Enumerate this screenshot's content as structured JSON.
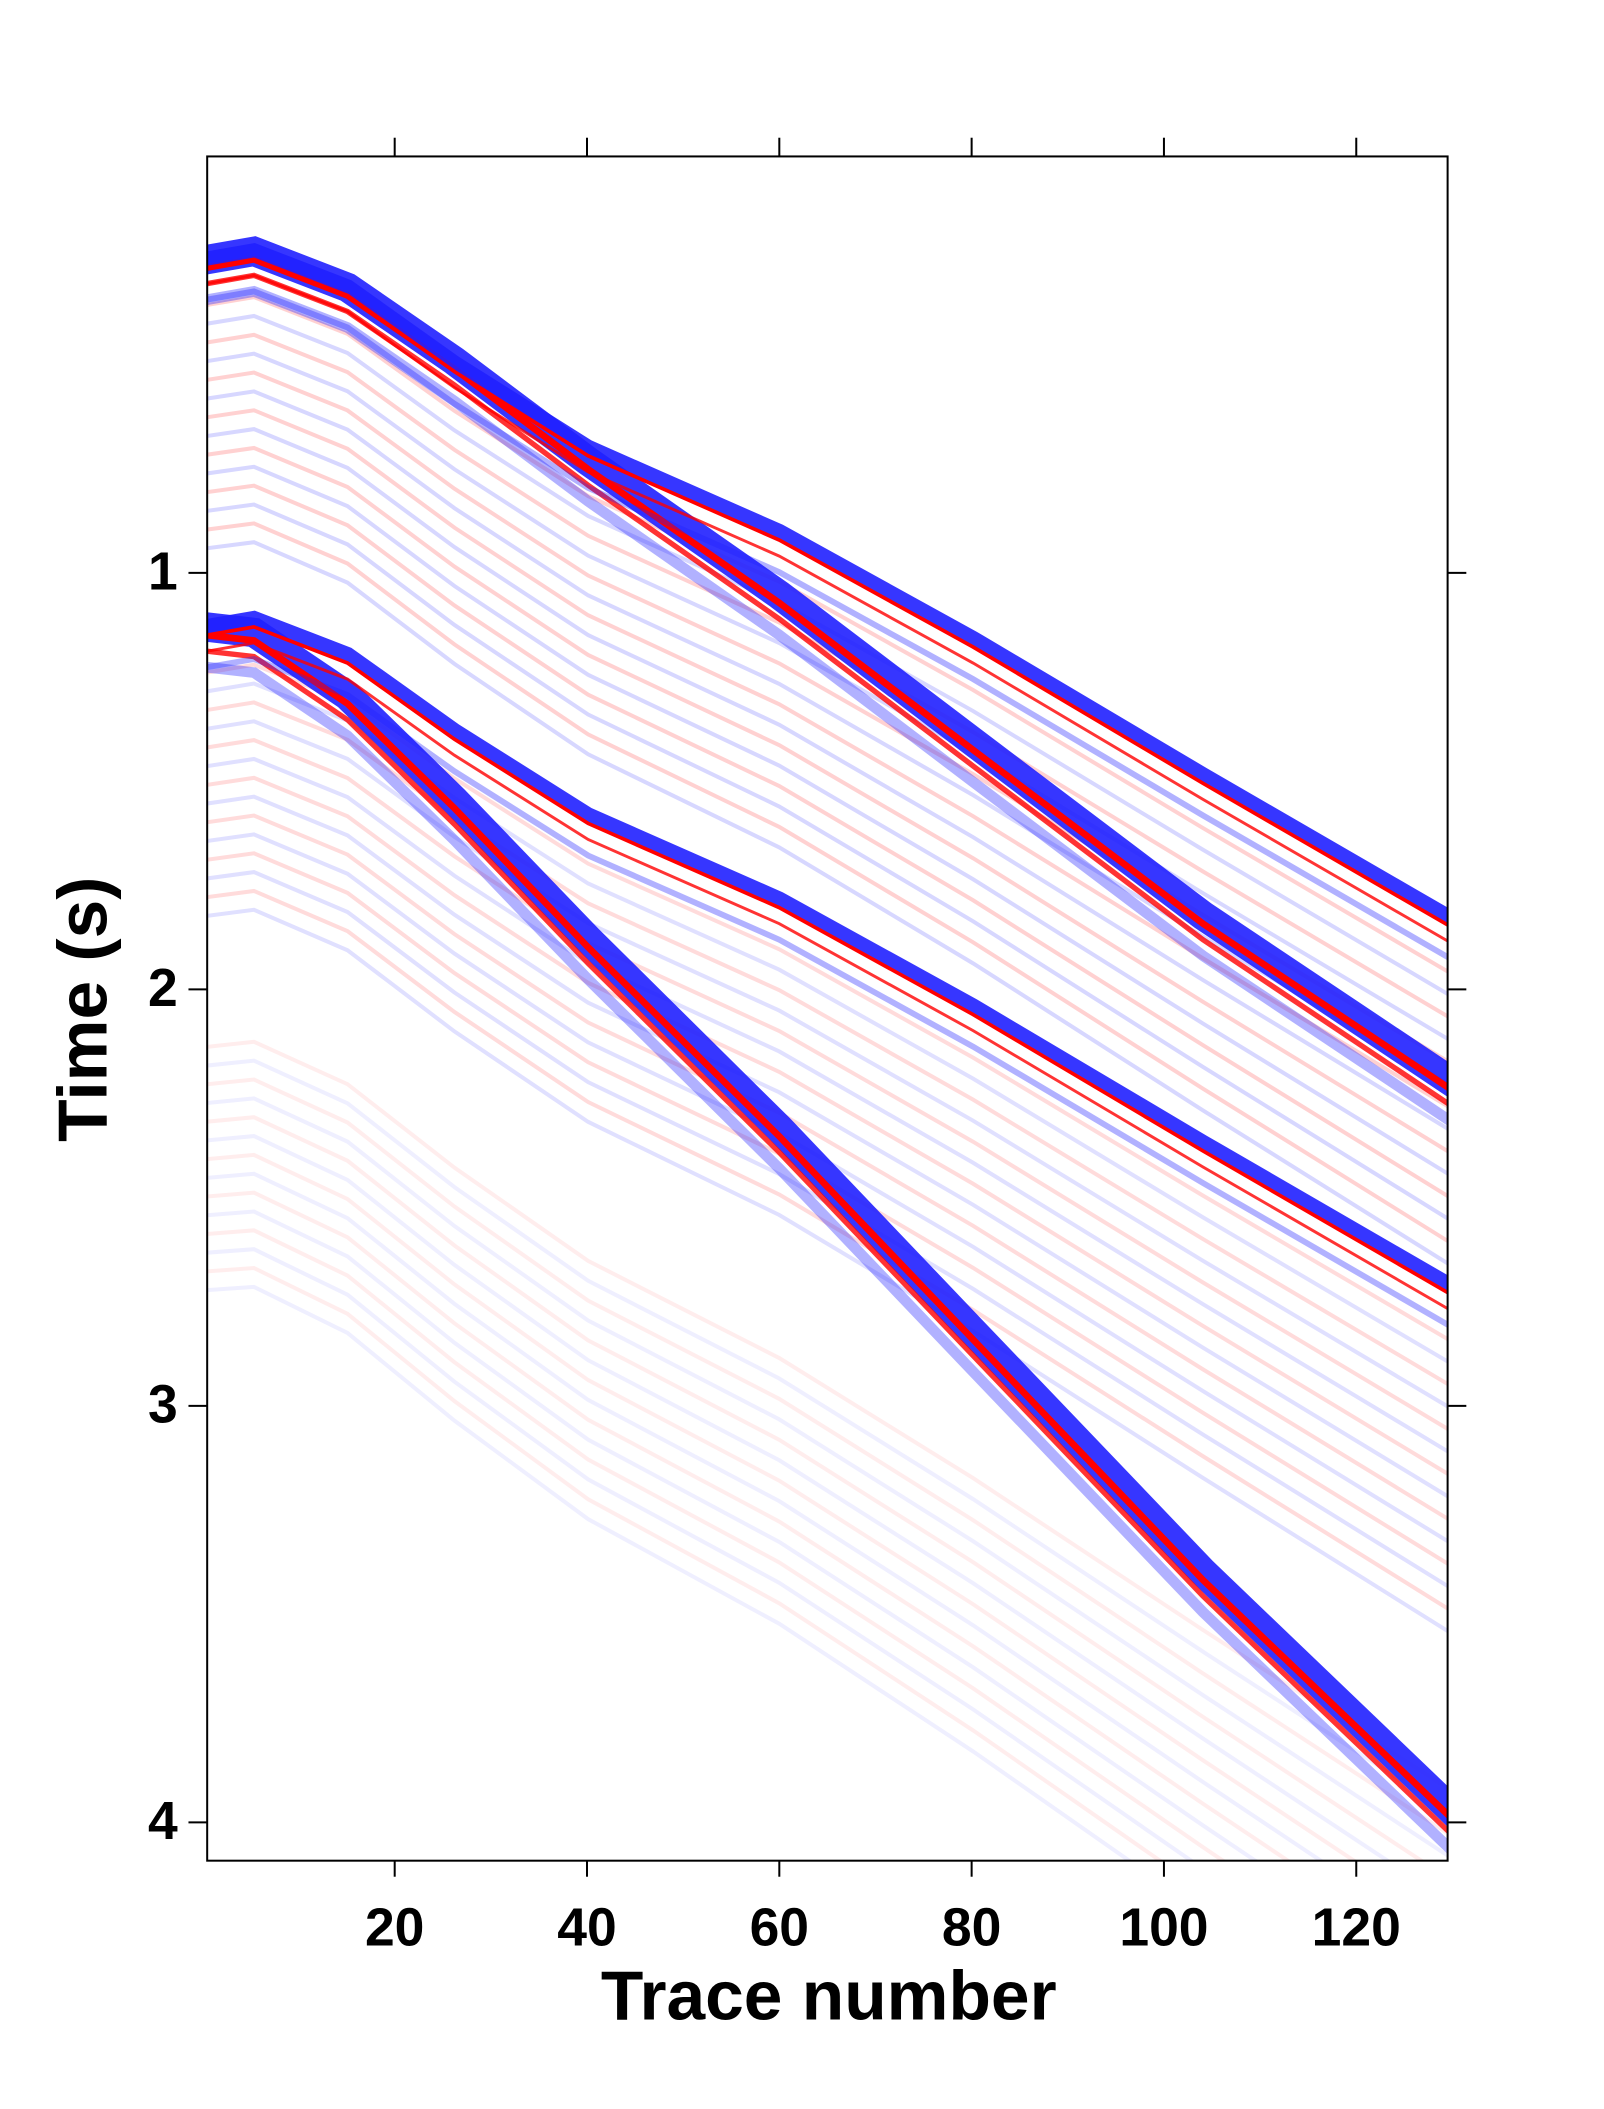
{
  "chart_data": {
    "type": "image",
    "xlabel": "Trace number",
    "ylabel": "Time (s)",
    "xlim": [
      0.5,
      129.5
    ],
    "ylim": [
      0,
      4.092
    ],
    "y_inverted": true,
    "xticks": [
      20,
      40,
      60,
      80,
      100,
      120
    ],
    "yticks": [
      1,
      2,
      3,
      4
    ],
    "colormap": [
      "#2020ff",
      "#ffffff",
      "#ff0000"
    ]
  }
}
